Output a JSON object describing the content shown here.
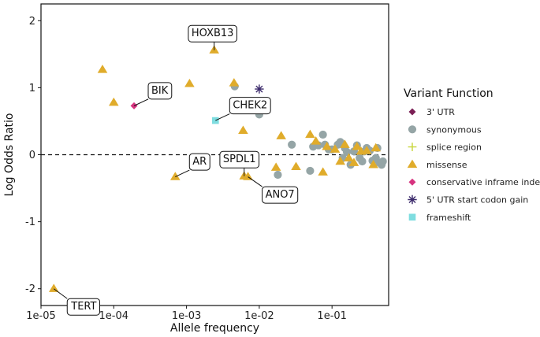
{
  "chart_data": {
    "type": "scatter",
    "xlabel": "Allele frequency",
    "ylabel": "Log Odds Ratio",
    "x_scale": "log10",
    "xlim": [
      1e-05,
      0.6
    ],
    "ylim": [
      -2.25,
      2.25
    ],
    "x_ticks": [
      1e-05,
      0.0001,
      0.001,
      0.01,
      0.1
    ],
    "x_tick_labels": [
      "1e-05",
      "1e-04",
      "1e-03",
      "1e-02",
      "1e-01"
    ],
    "y_ticks": [
      2,
      1,
      0,
      -1,
      -2
    ],
    "y_tick_labels": [
      "2",
      "1",
      "0",
      "-1",
      "-2"
    ],
    "reference_line": {
      "y": 0,
      "style": "dashed"
    },
    "legend": {
      "title": "Variant Function",
      "position": "right",
      "entries": [
        {
          "label": "3' UTR",
          "marker": "diamond",
          "color": "#7b1f55"
        },
        {
          "label": "synonymous",
          "marker": "circle",
          "color": "#95a5a6"
        },
        {
          "label": "splice region",
          "marker": "plus",
          "color": "#c8d63a"
        },
        {
          "label": "missense",
          "marker": "triangle",
          "color": "#e0ac2b"
        },
        {
          "label": "conservative inframe indel",
          "marker": "diamond",
          "color": "#d6337f"
        },
        {
          "label": "5' UTR start codon gain",
          "marker": "star",
          "color": "#3b2a6b"
        },
        {
          "label": "frameshift",
          "marker": "square",
          "color": "#7fdde0"
        }
      ]
    },
    "series": [
      {
        "name": "missense",
        "marker": "triangle",
        "color": "#e0ac2b",
        "points": [
          [
            1.5e-05,
            -2.0
          ],
          [
            7e-05,
            1.27
          ],
          [
            0.0001,
            0.78
          ],
          [
            0.0007,
            -0.33
          ],
          [
            0.0011,
            1.06
          ],
          [
            0.0024,
            1.56
          ],
          [
            0.0045,
            1.07
          ],
          [
            0.006,
            0.36
          ],
          [
            0.0062,
            -0.32
          ],
          [
            0.007,
            -0.33
          ],
          [
            0.017,
            -0.19
          ],
          [
            0.02,
            0.28
          ],
          [
            0.032,
            -0.18
          ],
          [
            0.05,
            0.3
          ],
          [
            0.06,
            0.2
          ],
          [
            0.075,
            -0.26
          ],
          [
            0.085,
            0.12
          ],
          [
            0.11,
            0.08
          ],
          [
            0.13,
            -0.1
          ],
          [
            0.15,
            0.15
          ],
          [
            0.17,
            -0.05
          ],
          [
            0.2,
            -0.12
          ],
          [
            0.22,
            0.12
          ],
          [
            0.25,
            0.05
          ],
          [
            0.3,
            0.06
          ],
          [
            0.37,
            -0.15
          ],
          [
            0.4,
            0.1
          ]
        ]
      },
      {
        "name": "synonymous",
        "marker": "circle",
        "color": "#95a5a6",
        "points": [
          [
            0.0046,
            1.02
          ],
          [
            0.01,
            0.6
          ],
          [
            0.018,
            -0.3
          ],
          [
            0.028,
            0.15
          ],
          [
            0.05,
            -0.24
          ],
          [
            0.055,
            0.12
          ],
          [
            0.065,
            0.14
          ],
          [
            0.075,
            0.3
          ],
          [
            0.08,
            0.15
          ],
          [
            0.09,
            0.08
          ],
          [
            0.1,
            0.08
          ],
          [
            0.12,
            0.15
          ],
          [
            0.13,
            0.19
          ],
          [
            0.14,
            -0.05
          ],
          [
            0.15,
            0.1
          ],
          [
            0.16,
            0.04
          ],
          [
            0.18,
            -0.15
          ],
          [
            0.2,
            0.05
          ],
          [
            0.22,
            0.14
          ],
          [
            0.24,
            -0.05
          ],
          [
            0.26,
            -0.1
          ],
          [
            0.28,
            0.05
          ],
          [
            0.3,
            0.1
          ],
          [
            0.33,
            0.06
          ],
          [
            0.36,
            -0.09
          ],
          [
            0.4,
            -0.05
          ],
          [
            0.42,
            0.1
          ],
          [
            0.45,
            -0.12
          ],
          [
            0.48,
            -0.15
          ],
          [
            0.5,
            -0.1
          ]
        ]
      },
      {
        "name": "conservative inframe indel",
        "marker": "diamond",
        "color": "#d6337f",
        "points": [
          [
            0.00019,
            0.73
          ]
        ]
      },
      {
        "name": "5' UTR start codon gain",
        "marker": "star",
        "color": "#3b2a6b",
        "points": [
          [
            0.01,
            0.98
          ]
        ]
      },
      {
        "name": "frameshift",
        "marker": "square",
        "color": "#7fdde0",
        "points": [
          [
            0.0025,
            0.51
          ]
        ]
      }
    ],
    "annotations": [
      {
        "text": "HOXB13",
        "x": 0.0024,
        "y": 1.56,
        "anchor": "above"
      },
      {
        "text": "BIK",
        "x": 0.00019,
        "y": 0.73,
        "anchor": "upper-right"
      },
      {
        "text": "CHEK2",
        "x": 0.0025,
        "y": 0.51,
        "anchor": "upper-right"
      },
      {
        "text": "AR",
        "x": 0.0007,
        "y": -0.33,
        "anchor": "upper-right"
      },
      {
        "text": "SPDL1",
        "x": 0.0062,
        "y": -0.32,
        "anchor": "upper-left"
      },
      {
        "text": "ANO7",
        "x": 0.007,
        "y": -0.33,
        "anchor": "lower-right"
      },
      {
        "text": "TERT",
        "x": 1.5e-05,
        "y": -2.0,
        "anchor": "lower-right"
      }
    ]
  }
}
